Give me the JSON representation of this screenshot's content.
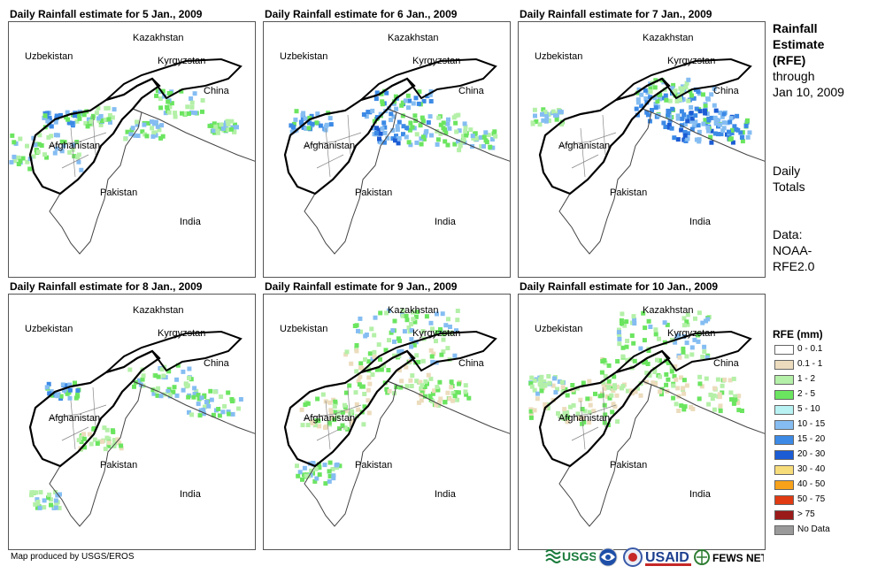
{
  "panels": [
    {
      "title": "Daily Rainfall estimate for 5 Jan., 2009"
    },
    {
      "title": "Daily Rainfall estimate for 6 Jan., 2009"
    },
    {
      "title": "Daily Rainfall estimate for 7 Jan., 2009"
    },
    {
      "title": "Daily Rainfall estimate for 8 Jan., 2009"
    },
    {
      "title": "Daily Rainfall estimate for 9 Jan., 2009"
    },
    {
      "title": "Daily Rainfall estimate for 10 Jan., 2009"
    }
  ],
  "map_labels": {
    "kazakhstan": "Kazakhstan",
    "uzbekistan": "Uzbekistan",
    "kyrgyzstan": "Kyrgyzstan",
    "china": "China",
    "afghanistan": "Afghanistan",
    "pakistan": "Pakistan",
    "india": "India"
  },
  "sidebar": {
    "title_bold": [
      "Rainfall",
      "Estimate",
      "(RFE)"
    ],
    "title_rest": [
      "through",
      "Jan 10, 2009"
    ],
    "totals": [
      "Daily",
      "Totals"
    ],
    "data_source": [
      "Data:",
      "NOAA-",
      "RFE2.0"
    ]
  },
  "legend": {
    "title": "RFE (mm)",
    "items": [
      {
        "label": "0 - 0.1",
        "color": "#ffffff"
      },
      {
        "label": "0.1 - 1",
        "color": "#ecdcbd"
      },
      {
        "label": "1 - 2",
        "color": "#b4f0a8"
      },
      {
        "label": "2 - 5",
        "color": "#6be560"
      },
      {
        "label": "5 - 10",
        "color": "#b9f2f2"
      },
      {
        "label": "10 - 15",
        "color": "#85bdf2"
      },
      {
        "label": "15 - 20",
        "color": "#3c8ae6"
      },
      {
        "label": "20 - 30",
        "color": "#1b5cd4"
      },
      {
        "label": "30 - 40",
        "color": "#f7dc7a"
      },
      {
        "label": "40 - 50",
        "color": "#f7a21a"
      },
      {
        "label": "50 - 75",
        "color": "#e03b12"
      },
      {
        "label": "> 75",
        "color": "#9a1a1a"
      },
      {
        "label": "No Data",
        "color": "#9a9a9a"
      }
    ]
  },
  "footer": {
    "credit": "Map produced by USGS/EROS",
    "logos": [
      "USGS",
      "NOAA",
      "USAID",
      "FEWS NET"
    ]
  }
}
